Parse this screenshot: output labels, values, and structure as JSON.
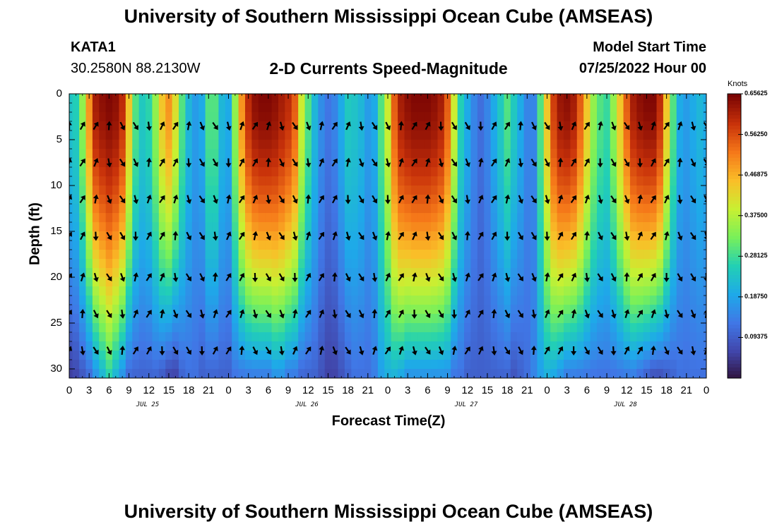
{
  "header": {
    "title": "University of Southern Mississippi Ocean Cube (AMSEAS)",
    "station": "KATA1",
    "coords": "30.2580N  88.2130W",
    "subtitle": "2-D Currents Speed-Magnitude",
    "model_label": "Model Start Time",
    "model_time": "07/25/2022 Hour 00"
  },
  "footer": {
    "title": "University of Southern Mississippi Ocean Cube (AMSEAS)"
  },
  "chart_data": {
    "type": "heatmap",
    "title": "2-D Currents Speed-Magnitude",
    "xlabel": "Forecast Time(Z)",
    "ylabel": "Depth (ft)",
    "xlim": [
      0,
      96
    ],
    "ylim": [
      31,
      0
    ],
    "x_tick_values": [
      0,
      3,
      6,
      9,
      12,
      15,
      18,
      21,
      24,
      27,
      30,
      33,
      36,
      39,
      42,
      45,
      48,
      51,
      54,
      57,
      60,
      63,
      66,
      69,
      72,
      75,
      78,
      81,
      84,
      87,
      90,
      93,
      96
    ],
    "x_tick_labels": [
      "0",
      "3",
      "6",
      "9",
      "12",
      "15",
      "18",
      "21",
      "0",
      "3",
      "6",
      "9",
      "12",
      "15",
      "18",
      "21",
      "0",
      "3",
      "6",
      "9",
      "12",
      "15",
      "18",
      "21",
      "0",
      "3",
      "6",
      "9",
      "12",
      "15",
      "18",
      "21",
      "0"
    ],
    "y_ticks": [
      0,
      5,
      10,
      15,
      20,
      25,
      30
    ],
    "day_labels": [
      {
        "hour": 12,
        "label": "JUL 25"
      },
      {
        "hour": 36,
        "label": "JUL 26"
      },
      {
        "hour": 60,
        "label": "JUL 27"
      },
      {
        "hour": 84,
        "label": "JUL 28"
      }
    ],
    "colorbar": {
      "unit": "Knots",
      "min": 0,
      "max": 0.65625,
      "ticks": [
        "0.65625",
        "0.56250",
        "0.46875",
        "0.37500",
        "0.28125",
        "0.18750",
        "0.09375"
      ],
      "tick_values": [
        0.65625,
        0.5625,
        0.46875,
        0.375,
        0.28125,
        0.1875,
        0.09375
      ]
    },
    "speed_profile": {
      "hours": [
        0,
        1,
        2,
        3,
        4,
        5,
        6,
        7,
        8,
        9,
        10,
        11,
        12,
        13,
        14,
        15,
        16,
        17,
        18,
        19,
        20,
        21,
        22,
        23,
        24,
        25,
        26,
        27,
        28,
        29,
        30,
        31,
        32,
        33,
        34,
        35,
        36,
        37,
        38,
        39,
        40,
        41,
        42,
        43,
        44,
        45,
        46,
        47,
        48,
        49,
        50,
        51,
        52,
        53,
        54,
        55,
        56,
        57,
        58,
        59,
        60,
        61,
        62,
        63,
        64,
        65,
        66,
        67,
        68,
        69,
        70,
        71,
        72,
        73,
        74,
        75,
        76,
        77,
        78,
        79,
        80,
        81,
        82,
        83,
        84,
        85,
        86,
        87,
        88,
        89,
        90,
        91,
        92,
        93,
        94,
        95,
        96
      ],
      "surface_speed": [
        0.24,
        0.26,
        0.35,
        0.5,
        0.62,
        0.64,
        0.65,
        0.64,
        0.6,
        0.45,
        0.3,
        0.25,
        0.27,
        0.35,
        0.45,
        0.5,
        0.42,
        0.3,
        0.22,
        0.18,
        0.2,
        0.3,
        0.3,
        0.22,
        0.2,
        0.35,
        0.5,
        0.6,
        0.64,
        0.65,
        0.65,
        0.64,
        0.62,
        0.6,
        0.55,
        0.4,
        0.3,
        0.22,
        0.16,
        0.13,
        0.15,
        0.2,
        0.25,
        0.24,
        0.22,
        0.18,
        0.2,
        0.3,
        0.4,
        0.55,
        0.62,
        0.64,
        0.65,
        0.65,
        0.65,
        0.64,
        0.62,
        0.55,
        0.4,
        0.26,
        0.2,
        0.15,
        0.12,
        0.15,
        0.2,
        0.25,
        0.3,
        0.25,
        0.2,
        0.15,
        0.15,
        0.3,
        0.45,
        0.58,
        0.63,
        0.64,
        0.62,
        0.55,
        0.45,
        0.35,
        0.3,
        0.28,
        0.35,
        0.45,
        0.55,
        0.62,
        0.64,
        0.65,
        0.65,
        0.6,
        0.45,
        0.3,
        0.2,
        0.18,
        0.2,
        0.22,
        0.2
      ],
      "bottom_speed": [
        0.05,
        0.06,
        0.08,
        0.1,
        0.15,
        0.2,
        0.25,
        0.2,
        0.15,
        0.1,
        0.1,
        0.1,
        0.1,
        0.1,
        0.08,
        0.05,
        0.05,
        0.1,
        0.12,
        0.12,
        0.1,
        0.1,
        0.1,
        0.1,
        0.1,
        0.12,
        0.12,
        0.12,
        0.12,
        0.12,
        0.12,
        0.15,
        0.15,
        0.12,
        0.12,
        0.1,
        0.1,
        0.1,
        0.08,
        0.06,
        0.06,
        0.08,
        0.1,
        0.12,
        0.12,
        0.12,
        0.14,
        0.18,
        0.2,
        0.2,
        0.18,
        0.15,
        0.15,
        0.15,
        0.15,
        0.15,
        0.15,
        0.15,
        0.12,
        0.12,
        0.1,
        0.1,
        0.1,
        0.1,
        0.1,
        0.1,
        0.1,
        0.08,
        0.1,
        0.12,
        0.15,
        0.18,
        0.2,
        0.18,
        0.15,
        0.12,
        0.12,
        0.12,
        0.12,
        0.12,
        0.12,
        0.12,
        0.12,
        0.12,
        0.12,
        0.12,
        0.1,
        0.08,
        0.06,
        0.06,
        0.08,
        0.1,
        0.12,
        0.12,
        0.12,
        0.12,
        0.12
      ]
    },
    "vector_depths": [
      3.5,
      7.5,
      11.5,
      15.5,
      20,
      24,
      28
    ],
    "vector_hours": [
      0,
      2,
      4,
      6,
      8,
      10,
      12,
      14,
      16,
      18,
      20,
      22,
      24,
      26,
      28,
      30,
      32,
      34,
      36,
      38,
      40,
      42,
      44,
      46,
      48,
      50,
      52,
      54,
      56,
      58,
      60,
      62,
      64,
      66,
      68,
      70,
      72,
      74,
      76,
      78,
      80,
      82,
      84,
      86,
      88,
      90,
      92,
      94,
      96
    ]
  }
}
